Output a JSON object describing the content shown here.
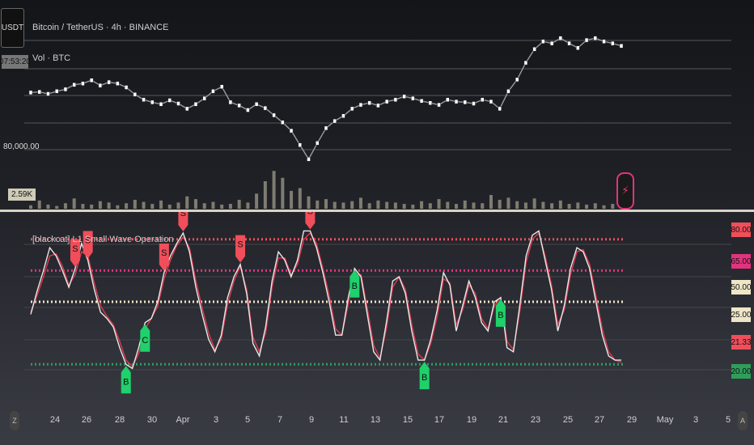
{
  "header": {
    "symbol_button": "USDT",
    "time_tag": "07:53:20",
    "title": "Bitcoin / TetherUS · 4h · BINANCE",
    "subtitle": "Vol · BTC",
    "price_level_label": "80,000.00",
    "volume_badge": "2.59K",
    "indicator_title": "[blackcat] L1 Small Wave Operation"
  },
  "right_badges": [
    {
      "label": "80.00",
      "color": "#f04e5a"
    },
    {
      "label": "65.00",
      "color": "#e2337f"
    },
    {
      "label": "50.00",
      "color": "#efe6c8"
    },
    {
      "label": "25.00",
      "color": "#efe6c8"
    },
    {
      "label": "21.33",
      "color": "#f04e5a"
    },
    {
      "label": "20.00",
      "color": "#2e9e5a"
    }
  ],
  "x_axis": {
    "left_marker": "Z",
    "right_marker": "A",
    "labels": [
      "24",
      "26",
      "28",
      "30",
      "Apr",
      "3",
      "5",
      "7",
      "9",
      "11",
      "13",
      "15",
      "17",
      "19",
      "21",
      "23",
      "25",
      "27",
      "29",
      "May",
      "3",
      "5"
    ]
  },
  "chart_data": [
    {
      "type": "line",
      "title": "Bitcoin / TetherUS · 4h · BINANCE",
      "subtitle": "Vol · BTC",
      "price_axis_labels": [
        "80,000.00"
      ],
      "series": [
        {
          "name": "",
          "values": [
            86700,
            86800,
            86500,
            86900,
            87200,
            87900,
            88100,
            88600,
            87800,
            88300,
            88100,
            87500,
            86400,
            85600,
            85200,
            84900,
            85500,
            85000,
            84200,
            84900,
            85800,
            86900,
            87600,
            85200,
            84700,
            84000,
            84900,
            84300,
            83200,
            82100,
            80800,
            78600,
            76400,
            78900,
            81200,
            82300,
            83100,
            84200,
            84800,
            85100,
            84700,
            85300,
            85600,
            86100,
            85800,
            85400,
            85100,
            84800,
            85600,
            85300,
            85200,
            85000,
            85600,
            85300,
            84200,
            86900,
            88700,
            91300,
            93400,
            94600,
            94300,
            95100,
            94300,
            93600,
            94800,
            95100,
            94600,
            94300,
            93900
          ]
        }
      ],
      "volume": [
        5,
        12,
        6,
        4,
        8,
        15,
        7,
        6,
        11,
        9,
        5,
        8,
        13,
        10,
        7,
        12,
        6,
        9,
        18,
        14,
        8,
        10,
        6,
        7,
        13,
        9,
        22,
        40,
        55,
        45,
        26,
        30,
        18,
        12,
        14,
        10,
        9,
        11,
        16,
        8,
        12,
        10,
        9,
        7,
        6,
        11,
        8,
        14,
        10,
        7,
        12,
        9,
        8,
        20,
        13,
        16,
        11,
        9,
        15,
        10,
        8,
        12,
        7,
        9,
        6,
        8,
        5,
        7,
        4
      ]
    },
    {
      "type": "line",
      "title": "[blackcat] L1 Small Wave Operation",
      "ylim": [
        10,
        90
      ],
      "levels": [
        {
          "value": 80,
          "color": "#f04e5a"
        },
        {
          "value": 65,
          "color": "#e2337f"
        },
        {
          "value": 50,
          "color": "#efe6c8"
        },
        {
          "value": 20,
          "color": "#2e9e5a"
        }
      ],
      "series": [
        {
          "name": "",
          "color": "#e8e8e8",
          "values": [
            44,
            55,
            65,
            76,
            72,
            65,
            57,
            66,
            78,
            70,
            56,
            45,
            42,
            38,
            28,
            20,
            18,
            28,
            40,
            42,
            50,
            64,
            72,
            78,
            83,
            74,
            57,
            44,
            32,
            26,
            34,
            52,
            62,
            68,
            54,
            30,
            24,
            38,
            60,
            74,
            70,
            62,
            70,
            84,
            84,
            76,
            64,
            50,
            34,
            34,
            52,
            66,
            62,
            44,
            26,
            22,
            40,
            60,
            62,
            54,
            36,
            22,
            22,
            32,
            46,
            64,
            58,
            36,
            48,
            60,
            52,
            40,
            36,
            50,
            52,
            28,
            26,
            48,
            72,
            82,
            84,
            70,
            56,
            36,
            48,
            66,
            76,
            74,
            66,
            50,
            34,
            24,
            22,
            22
          ]
        },
        {
          "name": "",
          "color": "#e03a50",
          "values": [
            45,
            53,
            62,
            72,
            73,
            67,
            58,
            63,
            74,
            72,
            59,
            48,
            43,
            39,
            31,
            22,
            19,
            25,
            37,
            42,
            48,
            61,
            70,
            77,
            81,
            76,
            60,
            47,
            35,
            27,
            32,
            49,
            60,
            67,
            56,
            33,
            26,
            35,
            57,
            71,
            71,
            63,
            68,
            80,
            83,
            78,
            66,
            53,
            37,
            34,
            49,
            63,
            63,
            47,
            29,
            23,
            37,
            57,
            62,
            56,
            39,
            25,
            22,
            30,
            43,
            61,
            59,
            39,
            46,
            58,
            54,
            42,
            37,
            48,
            52,
            31,
            27,
            45,
            69,
            80,
            83,
            72,
            58,
            39,
            46,
            63,
            74,
            75,
            68,
            53,
            37,
            26,
            22,
            21
          ]
        }
      ],
      "signals": [
        {
          "label": "S",
          "index": 7
        },
        {
          "label": "S",
          "index": 9
        },
        {
          "label": "B",
          "index": 15
        },
        {
          "label": "C",
          "index": 18
        },
        {
          "label": "S",
          "index": 21
        },
        {
          "label": "S",
          "index": 24
        },
        {
          "label": "S",
          "index": 33
        },
        {
          "label": "S",
          "index": 44
        },
        {
          "label": "B",
          "index": 51
        },
        {
          "label": "B",
          "index": 62
        },
        {
          "label": "B",
          "index": 74
        }
      ]
    }
  ]
}
